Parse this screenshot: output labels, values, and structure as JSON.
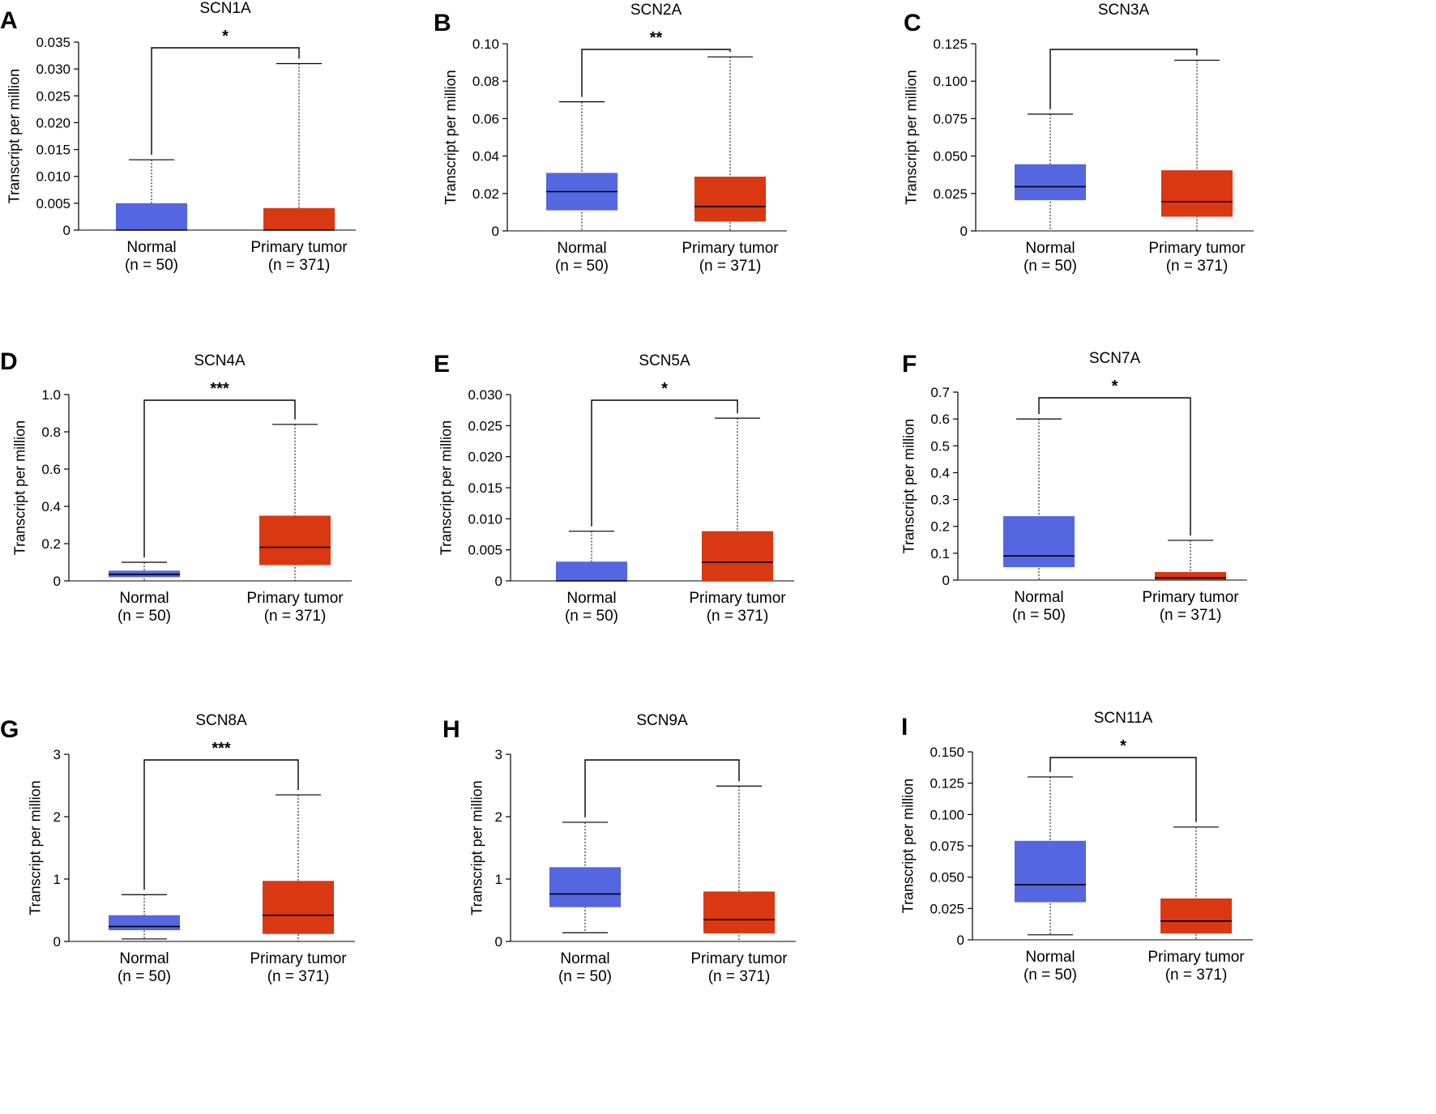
{
  "colors": {
    "normal": "#5466E0",
    "tumor": "#D93812",
    "axis": "#000000",
    "median": "#000000"
  },
  "chart_data": [
    {
      "panel": "A",
      "title": "SCN1A",
      "type": "box",
      "ylabel": "Transcript per million",
      "ylim": [
        0,
        0.035
      ],
      "yticks": [
        "0",
        "0.005",
        "0.010",
        "0.015",
        "0.020",
        "0.025",
        "0.030",
        "0.035"
      ],
      "categories": [
        "Normal",
        "Primary tumor"
      ],
      "counts": [
        "(n = 50)",
        "(n = 371)"
      ],
      "significance": "*",
      "boxes": [
        {
          "min": 0,
          "q1": 0,
          "median": 0,
          "q3": 0.005,
          "max": 0.0131
        },
        {
          "min": 0,
          "q1": 0,
          "median": 0,
          "q3": 0.0041,
          "max": 0.031
        }
      ]
    },
    {
      "panel": "B",
      "title": "SCN2A",
      "type": "box",
      "ylabel": "Transcript per million",
      "ylim": [
        0,
        0.1
      ],
      "yticks": [
        "0",
        "0.02",
        "0.04",
        "0.06",
        "0.08",
        "0.10"
      ],
      "categories": [
        "Normal",
        "Primary tumor"
      ],
      "counts": [
        "(n = 50)",
        "(n = 371)"
      ],
      "significance": "**",
      "boxes": [
        {
          "min": 0,
          "q1": 0.011,
          "median": 0.021,
          "q3": 0.031,
          "max": 0.069
        },
        {
          "min": 0,
          "q1": 0.005,
          "median": 0.013,
          "q3": 0.029,
          "max": 0.093
        }
      ]
    },
    {
      "panel": "C",
      "title": "SCN3A",
      "type": "box",
      "ylabel": "Transcript per million",
      "ylim": [
        0,
        0.125
      ],
      "yticks": [
        "0",
        "0.025",
        "0.050",
        "0.075",
        "0.100",
        "0.125"
      ],
      "categories": [
        "Normal",
        "Primary tumor"
      ],
      "counts": [
        "(n = 50)",
        "(n = 371)"
      ],
      "significance": "",
      "boxes": [
        {
          "min": 0,
          "q1": 0.0205,
          "median": 0.0295,
          "q3": 0.0445,
          "max": 0.078
        },
        {
          "min": 0,
          "q1": 0.0095,
          "median": 0.0195,
          "q3": 0.0405,
          "max": 0.114
        }
      ]
    },
    {
      "panel": "D",
      "title": "SCN4A",
      "type": "box",
      "ylabel": "Transcript per million",
      "ylim": [
        0,
        1.0
      ],
      "yticks": [
        "0",
        "0.2",
        "0.4",
        "0.6",
        "0.8",
        "1.0"
      ],
      "categories": [
        "Normal",
        "Primary tumor"
      ],
      "counts": [
        "(n = 50)",
        "(n = 371)"
      ],
      "significance": "***",
      "boxes": [
        {
          "min": 0,
          "q1": 0.02,
          "median": 0.035,
          "q3": 0.055,
          "max": 0.1
        },
        {
          "min": 0,
          "q1": 0.085,
          "median": 0.18,
          "q3": 0.35,
          "max": 0.84
        }
      ]
    },
    {
      "panel": "E",
      "title": "SCN5A",
      "type": "box",
      "ylabel": "Transcript per million",
      "ylim": [
        0,
        0.03
      ],
      "yticks": [
        "0",
        "0.005",
        "0.010",
        "0.015",
        "0.020",
        "0.025",
        "0.030"
      ],
      "categories": [
        "Normal",
        "Primary tumor"
      ],
      "counts": [
        "(n = 50)",
        "(n = 371)"
      ],
      "significance": "*",
      "boxes": [
        {
          "min": 0,
          "q1": 0,
          "median": 0,
          "q3": 0.0031,
          "max": 0.008
        },
        {
          "min": 0,
          "q1": 0,
          "median": 0.003,
          "q3": 0.008,
          "max": 0.0262
        }
      ]
    },
    {
      "panel": "F",
      "title": "SCN7A",
      "type": "box",
      "ylabel": "Transcript per million",
      "ylim": [
        0,
        0.7
      ],
      "yticks": [
        "0",
        "0.1",
        "0.2",
        "0.3",
        "0.4",
        "0.5",
        "0.6",
        "0.7"
      ],
      "categories": [
        "Normal",
        "Primary tumor"
      ],
      "counts": [
        "(n = 50)",
        "(n = 371)"
      ],
      "significance": "*",
      "boxes": [
        {
          "min": 0,
          "q1": 0.048,
          "median": 0.09,
          "q3": 0.238,
          "max": 0.6
        },
        {
          "min": 0,
          "q1": 0.002,
          "median": 0.008,
          "q3": 0.03,
          "max": 0.148
        }
      ]
    },
    {
      "panel": "G",
      "title": "SCN8A",
      "type": "box",
      "ylabel": "Transcript per million",
      "ylim": [
        0,
        3
      ],
      "yticks": [
        "0",
        "1",
        "2",
        "3"
      ],
      "categories": [
        "Normal",
        "Primary tumor"
      ],
      "counts": [
        "(n = 50)",
        "(n = 371)"
      ],
      "significance": "***",
      "boxes": [
        {
          "min": 0.04,
          "q1": 0.18,
          "median": 0.24,
          "q3": 0.42,
          "max": 0.75
        },
        {
          "min": 0,
          "q1": 0.12,
          "median": 0.42,
          "q3": 0.97,
          "max": 2.35
        }
      ]
    },
    {
      "panel": "H",
      "title": "SCN9A",
      "type": "box",
      "ylabel": "Transcript per million",
      "ylim": [
        0,
        3
      ],
      "yticks": [
        "0",
        "1",
        "2",
        "3"
      ],
      "categories": [
        "Normal",
        "Primary tumor"
      ],
      "counts": [
        "(n = 50)",
        "(n = 371)"
      ],
      "significance": "",
      "boxes": [
        {
          "min": 0.14,
          "q1": 0.55,
          "median": 0.76,
          "q3": 1.19,
          "max": 1.91
        },
        {
          "min": 0,
          "q1": 0.13,
          "median": 0.35,
          "q3": 0.8,
          "max": 2.49
        }
      ]
    },
    {
      "panel": "I",
      "title": "SCN11A",
      "type": "box",
      "ylabel": "Transcript per million",
      "ylim": [
        0,
        0.15
      ],
      "yticks": [
        "0",
        "0.025",
        "0.050",
        "0.075",
        "0.100",
        "0.125",
        "0.150"
      ],
      "categories": [
        "Normal",
        "Primary tumor"
      ],
      "counts": [
        "(n = 50)",
        "(n = 371)"
      ],
      "significance": "*",
      "boxes": [
        {
          "min": 0.004,
          "q1": 0.03,
          "median": 0.044,
          "q3": 0.079,
          "max": 0.13
        },
        {
          "min": 0,
          "q1": 0.005,
          "median": 0.015,
          "q3": 0.033,
          "max": 0.09
        }
      ]
    }
  ]
}
